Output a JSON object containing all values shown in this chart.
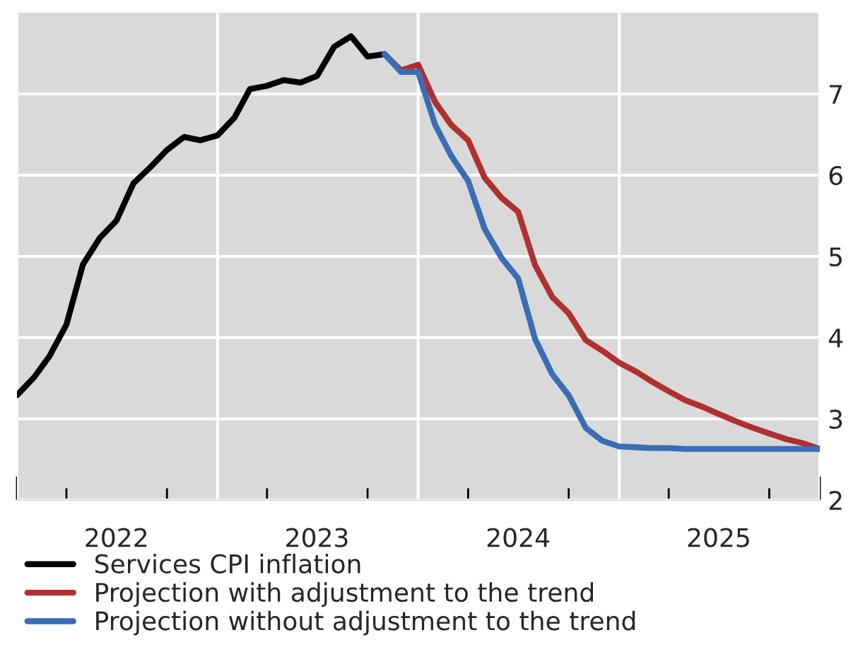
{
  "chart_data": {
    "type": "line",
    "x": [
      "2022-01",
      "2022-02",
      "2022-03",
      "2022-04",
      "2022-05",
      "2022-06",
      "2022-07",
      "2022-08",
      "2022-09",
      "2022-10",
      "2022-11",
      "2022-12",
      "2023-01",
      "2023-02",
      "2023-03",
      "2023-04",
      "2023-05",
      "2023-06",
      "2023-07",
      "2023-08",
      "2023-09",
      "2023-10",
      "2023-11",
      "2023-12",
      "2024-01",
      "2024-02",
      "2024-03",
      "2024-04",
      "2024-05",
      "2024-06",
      "2024-07",
      "2024-08",
      "2024-09",
      "2024-10",
      "2024-11",
      "2024-12",
      "2025-01",
      "2025-02",
      "2025-03",
      "2025-04",
      "2025-05",
      "2025-06",
      "2025-07",
      "2025-08",
      "2025-09",
      "2025-10",
      "2025-11",
      "2025-12",
      "2026-01"
    ],
    "series": [
      {
        "name": "Services CPI inflation",
        "color": "#000000",
        "values": [
          3.29,
          3.51,
          3.77,
          4.16,
          4.9,
          5.23,
          5.44,
          5.9,
          6.1,
          6.31,
          6.47,
          6.43,
          6.49,
          6.71,
          7.06,
          7.1,
          7.17,
          7.14,
          7.22,
          7.58,
          7.71,
          7.46,
          7.49,
          null,
          null,
          null,
          null,
          null,
          null,
          null,
          null,
          null,
          null,
          null,
          null,
          null,
          null,
          null,
          null,
          null,
          null,
          null,
          null,
          null,
          null,
          null,
          null,
          null,
          null
        ]
      },
      {
        "name": "Projection with adjustment to the trend",
        "color": "#b03030",
        "values": [
          null,
          null,
          null,
          null,
          null,
          null,
          null,
          null,
          null,
          null,
          null,
          null,
          null,
          null,
          null,
          null,
          null,
          null,
          null,
          null,
          null,
          null,
          7.49,
          7.29,
          7.36,
          6.9,
          6.62,
          6.43,
          5.97,
          5.72,
          5.55,
          4.89,
          4.5,
          4.3,
          3.97,
          3.84,
          3.69,
          3.58,
          3.46,
          3.34,
          3.23,
          3.15,
          3.06,
          2.97,
          2.89,
          2.82,
          2.75,
          2.7,
          2.63
        ]
      },
      {
        "name": "Projection without adjustment to the trend",
        "color": "#3a6db4",
        "values": [
          null,
          null,
          null,
          null,
          null,
          null,
          null,
          null,
          null,
          null,
          null,
          null,
          null,
          null,
          null,
          null,
          null,
          null,
          null,
          null,
          null,
          null,
          7.49,
          7.27,
          7.27,
          6.62,
          6.24,
          5.93,
          5.34,
          4.98,
          4.73,
          3.98,
          3.55,
          3.29,
          2.89,
          2.73,
          2.66,
          2.65,
          2.64,
          2.64,
          2.63,
          2.63,
          2.63,
          2.63,
          2.63,
          2.63,
          2.63,
          2.63,
          2.63
        ]
      }
    ],
    "xlim": [
      "2022-01",
      "2026-01"
    ],
    "xticks": [
      {
        "value": "2022-01",
        "label": null
      },
      {
        "value": "2022-04",
        "label": null
      },
      {
        "value": "2022-07",
        "label": "2022"
      },
      {
        "value": "2022-10",
        "label": null
      },
      {
        "value": "2023-01",
        "label": null
      },
      {
        "value": "2023-04",
        "label": null
      },
      {
        "value": "2023-07",
        "label": "2023"
      },
      {
        "value": "2023-10",
        "label": null
      },
      {
        "value": "2024-01",
        "label": null
      },
      {
        "value": "2024-04",
        "label": null
      },
      {
        "value": "2024-07",
        "label": "2024"
      },
      {
        "value": "2024-10",
        "label": null
      },
      {
        "value": "2025-01",
        "label": null
      },
      {
        "value": "2025-04",
        "label": null
      },
      {
        "value": "2025-07",
        "label": "2025"
      },
      {
        "value": "2025-10",
        "label": null
      },
      {
        "value": "2026-01",
        "label": null
      }
    ],
    "ylim": [
      2,
      8
    ],
    "yticks": [
      2,
      3,
      4,
      5,
      6,
      7
    ],
    "grid": true,
    "legend": "bottom",
    "line_style": "solid",
    "marker": "none"
  }
}
